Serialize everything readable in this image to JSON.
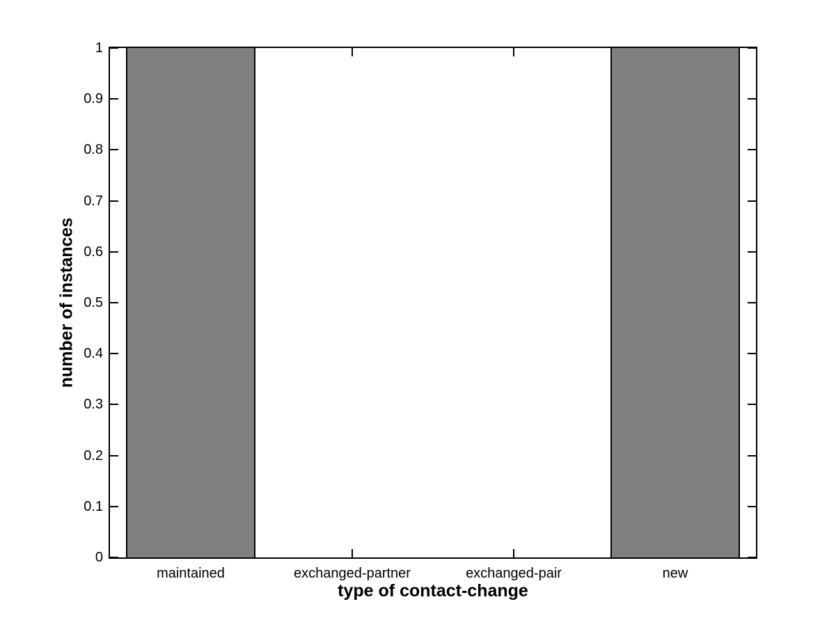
{
  "chart_data": {
    "type": "bar",
    "title": "",
    "xlabel": "type of contact-change",
    "ylabel": "number of instances",
    "categories": [
      "maintained",
      "exchanged-partner",
      "exchanged-pair",
      "new"
    ],
    "values": [
      1,
      0,
      0,
      1
    ],
    "ylim": [
      0,
      1
    ],
    "yticks": [
      0,
      0.1,
      0.2,
      0.3,
      0.4,
      0.5,
      0.6,
      0.7,
      0.8,
      0.9,
      1
    ],
    "ytick_labels": [
      "0",
      "0.1",
      "0.2",
      "0.3",
      "0.4",
      "0.5",
      "0.6",
      "0.7",
      "0.8",
      "0.9",
      "1"
    ],
    "bar_width_fraction": 0.8,
    "bar_color": "#808080",
    "bar_edge_color": "#000000",
    "axis_color": "#000000",
    "background_color": "#ffffff",
    "grid": false,
    "legend": []
  }
}
